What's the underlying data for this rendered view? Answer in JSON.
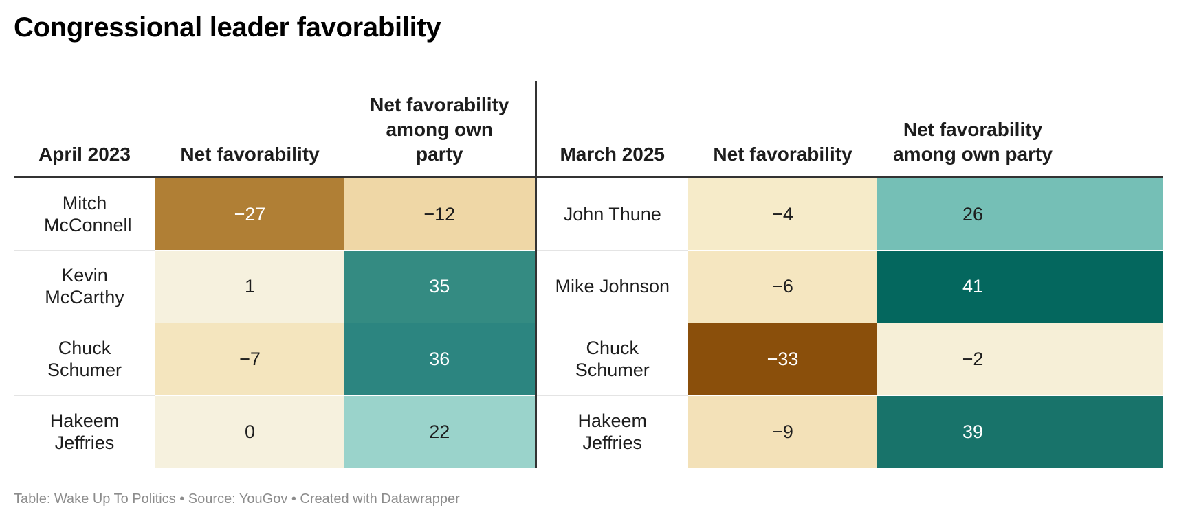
{
  "title": "Congressional leader favorability",
  "footer": "Table: Wake Up To Politics • Source: YouGov • Created with Datawrapper",
  "chart_data": {
    "type": "table",
    "columns": [
      "April 2023",
      "Net favorability",
      "Net favorability among own party",
      "March 2025",
      "Net favorability",
      "Net favorability among own party"
    ],
    "rows": [
      {
        "leader_2023": "Mitch McConnell",
        "net_2023": "−27",
        "own_2023": "−12",
        "leader_2025": "John Thune",
        "net_2025": "−4",
        "own_2025": "26"
      },
      {
        "leader_2023": "Kevin McCarthy",
        "net_2023": "1",
        "own_2023": "35",
        "leader_2025": "Mike Johnson",
        "net_2025": "−6",
        "own_2025": "41"
      },
      {
        "leader_2023": "Chuck Schumer",
        "net_2023": "−7",
        "own_2023": "36",
        "leader_2025": "Chuck Schumer",
        "net_2025": "−33",
        "own_2025": "−2"
      },
      {
        "leader_2023": "Hakeem Jeffries",
        "net_2023": "0",
        "own_2023": "22",
        "leader_2025": "Hakeem Jeffries",
        "net_2025": "−9",
        "own_2025": "39"
      }
    ],
    "cell_colors": [
      [
        "#b07f35",
        "#efd7a6",
        "#f6ebc9",
        "#75bfb6"
      ],
      [
        "#f6f1de",
        "#348b82",
        "#f5e6c0",
        "#04675e"
      ],
      [
        "#f4e5be",
        "#2c8580",
        "#8a4f0b",
        "#f6efd7"
      ],
      [
        "#f6f1de",
        "#9ad3cb",
        "#f3e1b8",
        "#18736a"
      ]
    ],
    "cell_text_colors": [
      [
        "#ffffff",
        "#1d1d1d",
        "#1d1d1d",
        "#1d1d1d"
      ],
      [
        "#1d1d1d",
        "#ffffff",
        "#1d1d1d",
        "#ffffff"
      ],
      [
        "#1d1d1d",
        "#ffffff",
        "#ffffff",
        "#1d1d1d"
      ],
      [
        "#1d1d1d",
        "#1d1d1d",
        "#1d1d1d",
        "#ffffff"
      ]
    ]
  }
}
